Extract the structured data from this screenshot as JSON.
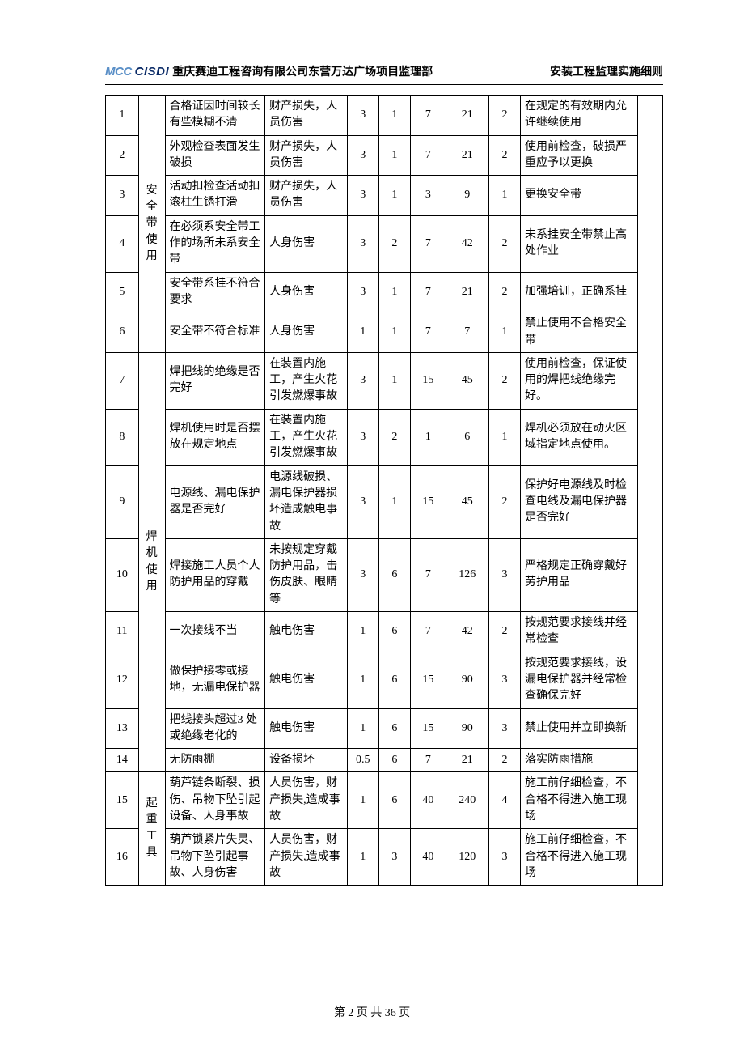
{
  "header": {
    "logo_prefix": "MCC",
    "logo_main": "CISDI",
    "title": "重庆赛迪工程咨询有限公司东营万达广场项目监理部",
    "right": "安装工程监理实施细则"
  },
  "col_widths_pct": [
    5.2,
    4.2,
    15.8,
    13.0,
    5.0,
    5.0,
    5.6,
    6.8,
    5.0,
    18.5,
    4.0
  ],
  "groups": [
    {
      "category": "安全带使用",
      "rows": [
        {
          "n": "1",
          "c2": "合格证因时间较长有些模糊不清",
          "c3": "财产损失，人员伤害",
          "c4": "3",
          "c5": "1",
          "c6": "7",
          "c7": "21",
          "c8": "2",
          "c9": "在规定的有效期内允许继续使用",
          "c10": ""
        },
        {
          "n": "2",
          "c2": "外观检查表面发生破损",
          "c3": "财产损失，人员伤害",
          "c4": "3",
          "c5": "1",
          "c6": "7",
          "c7": "21",
          "c8": "2",
          "c9": "使用前检查，破损严重应予以更换",
          "c10": ""
        },
        {
          "n": "3",
          "c2": "活动扣检查活动扣滚柱生锈打滑",
          "c3": "财产损失，人员伤害",
          "c4": "3",
          "c5": "1",
          "c6": "3",
          "c7": "9",
          "c8": "1",
          "c9": "更换安全带",
          "c10": ""
        },
        {
          "n": "4",
          "c2": "在必须系安全带工作的场所未系安全带",
          "c3": "人身伤害",
          "c4": "3",
          "c5": "2",
          "c6": "7",
          "c7": "42",
          "c8": "2",
          "c9": "未系挂安全带禁止高处作业",
          "c10": ""
        },
        {
          "n": "5",
          "c2": "安全带系挂不符合要求",
          "c3": "人身伤害",
          "c4": "3",
          "c5": "1",
          "c6": "7",
          "c7": "21",
          "c8": "2",
          "c9": "加强培训，正确系挂",
          "c10": ""
        },
        {
          "n": "6",
          "c2": "安全带不符合标准",
          "c3": "人身伤害",
          "c4": "1",
          "c5": "1",
          "c6": "7",
          "c7": "7",
          "c8": "1",
          "c9": "禁止使用不合格安全带",
          "c10": ""
        }
      ]
    },
    {
      "category": "焊机使用",
      "rows": [
        {
          "n": "7",
          "c2": "焊把线的绝缘是否完好",
          "c3": "在装置内施工，产生火花引发燃爆事故",
          "c4": "3",
          "c5": "1",
          "c6": "15",
          "c7": "45",
          "c8": "2",
          "c9": "使用前检查，保证使用的焊把线绝缘完好。",
          "c10": ""
        },
        {
          "n": "8",
          "c2": "焊机使用时是否摆放在规定地点",
          "c3": "在装置内施工，产生火花引发燃爆事故",
          "c4": "3",
          "c5": "2",
          "c6": "1",
          "c7": "6",
          "c8": "1",
          "c9": "焊机必须放在动火区域指定地点使用。",
          "c10": ""
        },
        {
          "n": "9",
          "c2": "电源线、漏电保护器是否完好",
          "c3": "电源线破损、漏电保护器损坏造成触电事故",
          "c4": "3",
          "c5": "1",
          "c6": "15",
          "c7": "45",
          "c8": "2",
          "c9": "保护好电源线及时检查电线及漏电保护器是否完好",
          "c10": ""
        },
        {
          "n": "10",
          "c2": "焊接施工人员个人防护用品的穿戴",
          "c3": "未按规定穿戴防护用品，击伤皮肤、眼睛等",
          "c4": "3",
          "c5": "6",
          "c6": "7",
          "c7": "126",
          "c8": "3",
          "c9": "严格规定正确穿戴好劳护用品",
          "c10": ""
        },
        {
          "n": "11",
          "c2": "一次接线不当",
          "c3": "触电伤害",
          "c4": "1",
          "c5": "6",
          "c6": "7",
          "c7": "42",
          "c8": "2",
          "c9": "按规范要求接线并经常检查",
          "c10": ""
        },
        {
          "n": "12",
          "c2": "做保护接零或接地，无漏电保护器",
          "c3": "触电伤害",
          "c4": "1",
          "c5": "6",
          "c6": "15",
          "c7": "90",
          "c8": "3",
          "c9": "按规范要求接线，设漏电保护器并经常检查确保完好",
          "c10": ""
        },
        {
          "n": "13",
          "c2": "把线接头超过3 处或绝缘老化的",
          "c3": "触电伤害",
          "c4": "1",
          "c5": "6",
          "c6": "15",
          "c7": "90",
          "c8": "3",
          "c9": "禁止使用并立即换新",
          "c10": ""
        },
        {
          "n": "14",
          "c2": "无防雨棚",
          "c3": "设备损坏",
          "c4": "0.5",
          "c5": "6",
          "c6": "7",
          "c7": "21",
          "c8": "2",
          "c9": "落实防雨措施",
          "c10": ""
        }
      ]
    },
    {
      "category": "起重工具",
      "rows": [
        {
          "n": "15",
          "c2": "葫芦链条断裂、损伤、吊物下坠引起设备、人身事故",
          "c3": "人员伤害，财产损失,造成事故",
          "c4": "1",
          "c5": "6",
          "c6": "40",
          "c7": "240",
          "c8": "4",
          "c9": "施工前仔细检查，不合格不得进入施工现场",
          "c10": ""
        },
        {
          "n": "16",
          "c2": "葫芦锁紧片失灵、吊物下坠引起事故、人身伤害",
          "c3": "人员伤害，财产损失,造成事故",
          "c4": "1",
          "c5": "3",
          "c6": "40",
          "c7": "120",
          "c8": "3",
          "c9": "施工前仔细检查，不合格不得进入施工现场",
          "c10": ""
        }
      ]
    }
  ],
  "footer": "第 2 页 共 36 页"
}
